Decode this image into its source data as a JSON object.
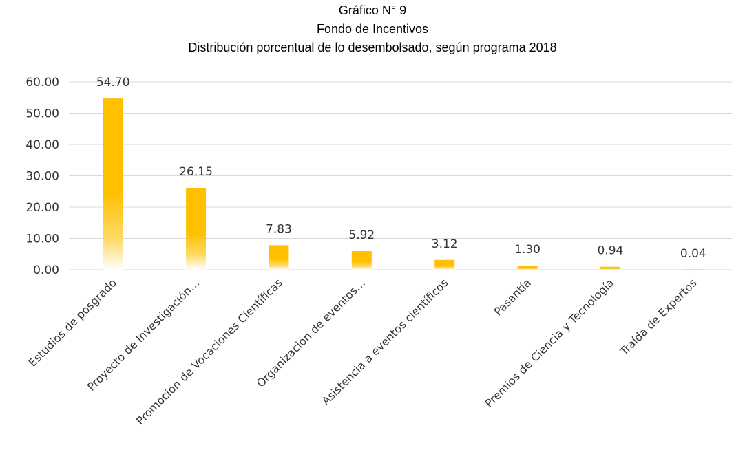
{
  "chart_data": {
    "type": "bar",
    "title": "Gráfico N° 9",
    "subtitle": "Fondo de Incentivos",
    "subtitle2": "Distribución porcentual de lo desembolsado, según programa 2018",
    "categories": [
      "Estudios de posgrado",
      "Proyecto de Investigación…",
      "Promoción de Vocaciones Científicas",
      "Organización de eventos…",
      "Asistencia a eventos científicos",
      "Pasantía",
      "Premios de Ciencia y Tecnología",
      "Traída de Expertos"
    ],
    "values": [
      54.7,
      26.15,
      7.83,
      5.92,
      3.12,
      1.3,
      0.94,
      0.04
    ],
    "data_labels": [
      "54.70",
      "26.15",
      "7.83",
      "5.92",
      "3.12",
      "1.30",
      "0.94",
      "0.04"
    ],
    "y_ticks": [
      "0.00",
      "10.00",
      "20.00",
      "30.00",
      "40.00",
      "50.00",
      "60.00"
    ],
    "ylim": [
      0,
      60
    ],
    "grid": true,
    "legend": "none",
    "bar_color": "#FFC000"
  }
}
